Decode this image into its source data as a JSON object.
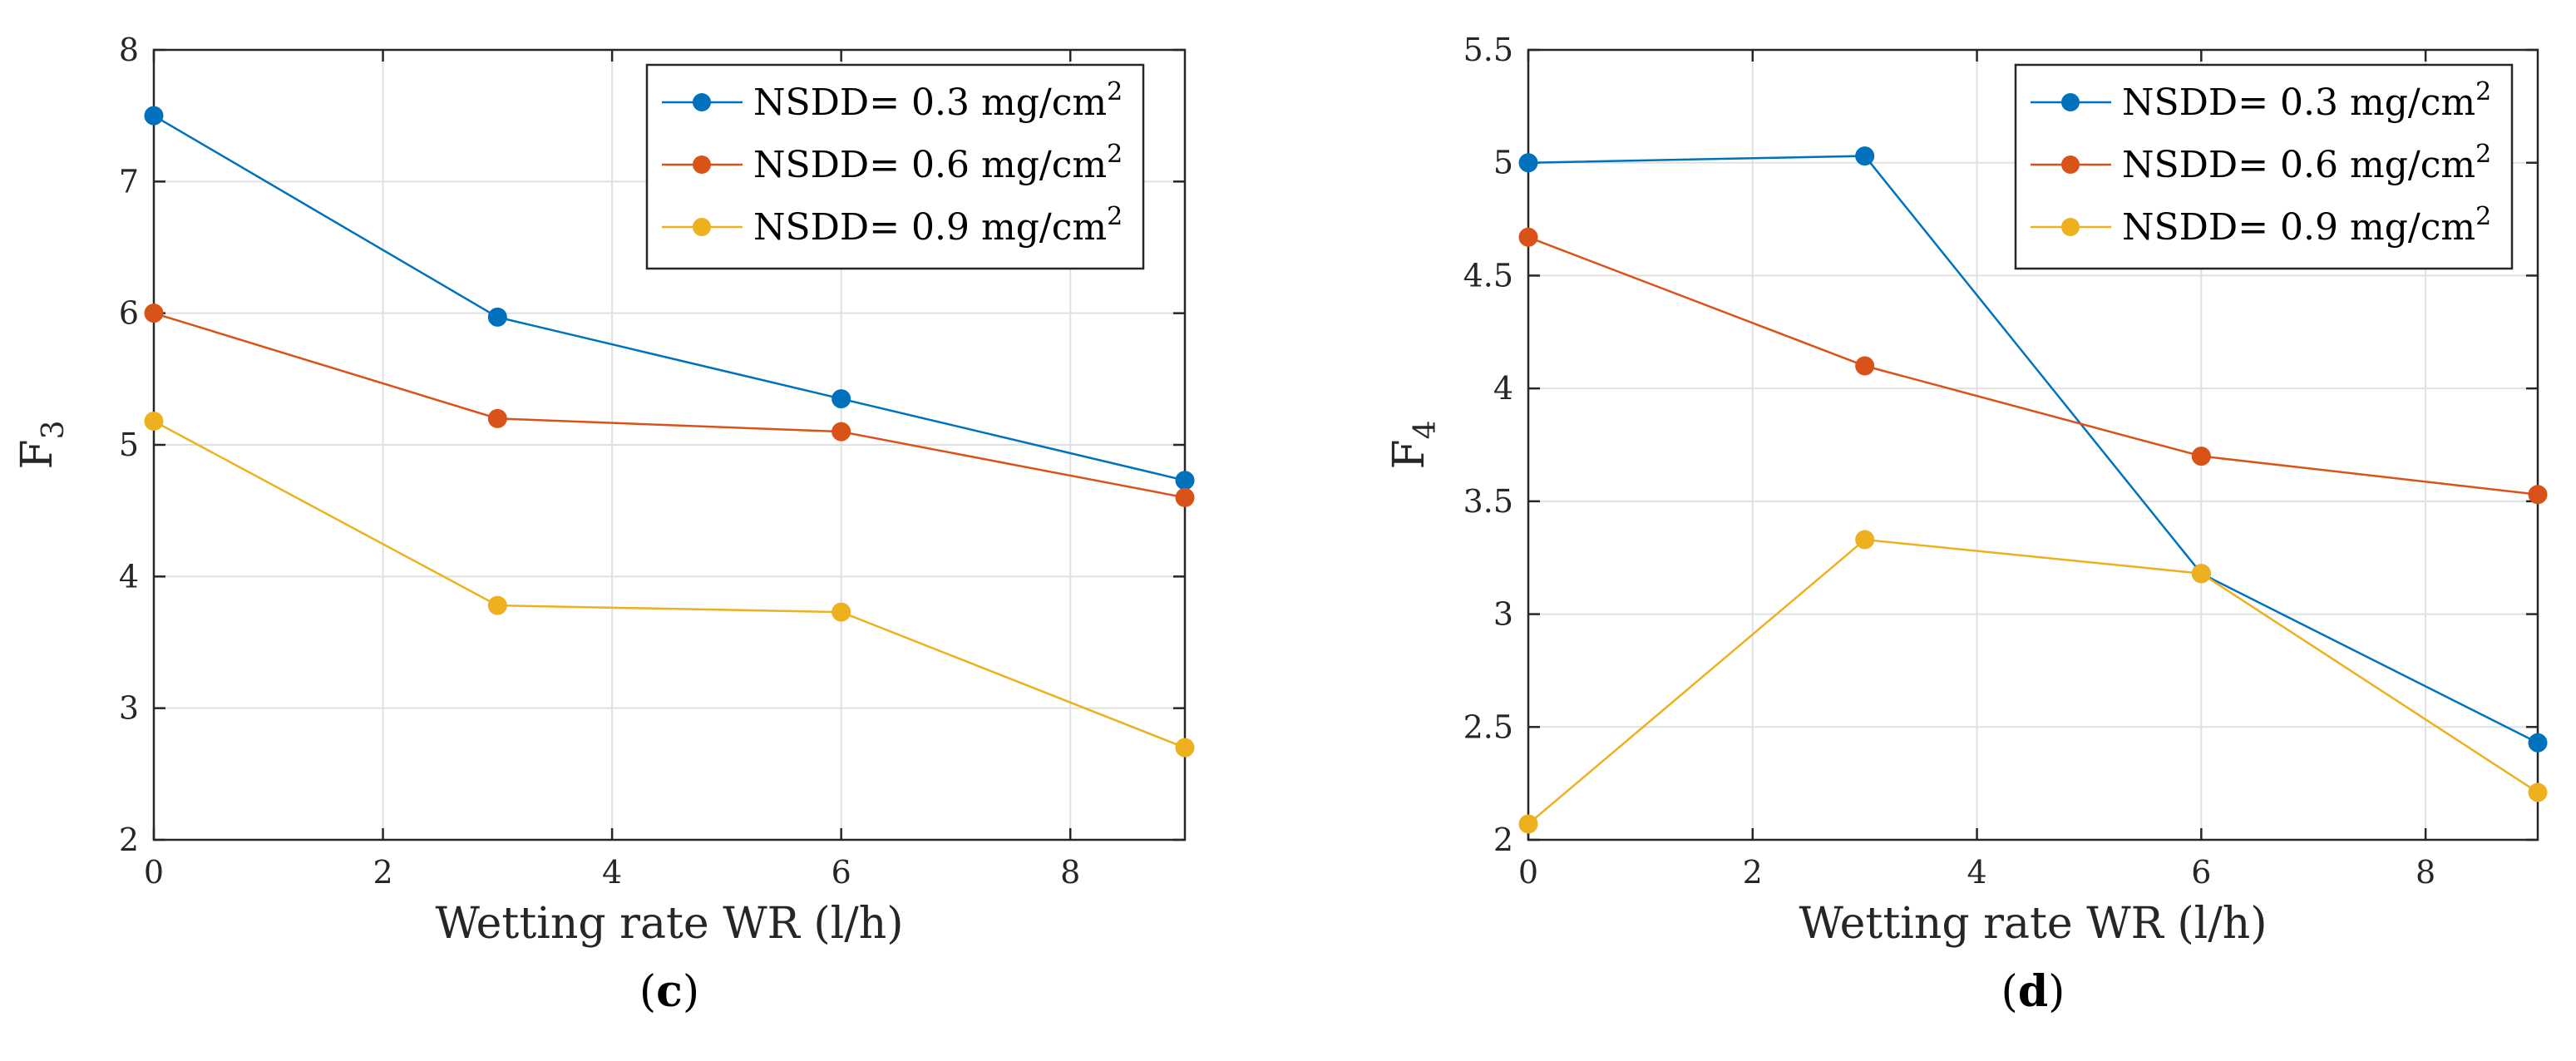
{
  "chart_data": [
    {
      "type": "line",
      "panel_label": "c",
      "xlabel": "Wetting rate WR (l/h)",
      "ylabel": "F",
      "ylabel_sub": "3",
      "xlim": [
        0,
        9
      ],
      "ylim": [
        2,
        8
      ],
      "xticks": [
        "0",
        "2",
        "4",
        "6",
        "8"
      ],
      "yticks": [
        "2",
        "3",
        "4",
        "5",
        "6",
        "7",
        "8"
      ],
      "grid": true,
      "legend_position": "top-right",
      "x": [
        0,
        3,
        6,
        9
      ],
      "series": [
        {
          "name": "NSDD= 0.3 mg/cm",
          "sup": "2",
          "color": "#0072BD",
          "values": [
            7.5,
            5.97,
            5.35,
            4.73
          ]
        },
        {
          "name": "NSDD= 0.6 mg/cm",
          "sup": "2",
          "color": "#D95319",
          "values": [
            6.0,
            5.2,
            5.1,
            4.6
          ]
        },
        {
          "name": "NSDD= 0.9 mg/cm",
          "sup": "2",
          "color": "#EDB120",
          "values": [
            5.18,
            3.78,
            3.73,
            2.7
          ]
        }
      ]
    },
    {
      "type": "line",
      "panel_label": "d",
      "xlabel": "Wetting rate WR (l/h)",
      "ylabel": "F",
      "ylabel_sub": "4",
      "xlim": [
        0,
        9
      ],
      "ylim": [
        2,
        5.5
      ],
      "xticks": [
        "0",
        "2",
        "4",
        "6",
        "8"
      ],
      "yticks": [
        "2",
        "2.5",
        "3",
        "3.5",
        "4",
        "4.5",
        "5",
        "5.5"
      ],
      "grid": true,
      "legend_position": "top-right",
      "x": [
        0,
        3,
        6,
        9
      ],
      "series": [
        {
          "name": "NSDD= 0.3 mg/cm",
          "sup": "2",
          "color": "#0072BD",
          "values": [
            5.0,
            5.03,
            3.18,
            2.43
          ]
        },
        {
          "name": "NSDD= 0.6 mg/cm",
          "sup": "2",
          "color": "#D95319",
          "values": [
            4.67,
            4.1,
            3.7,
            3.53
          ]
        },
        {
          "name": "NSDD= 0.9 mg/cm",
          "sup": "2",
          "color": "#EDB120",
          "values": [
            2.07,
            3.33,
            3.18,
            2.21
          ]
        }
      ]
    }
  ]
}
